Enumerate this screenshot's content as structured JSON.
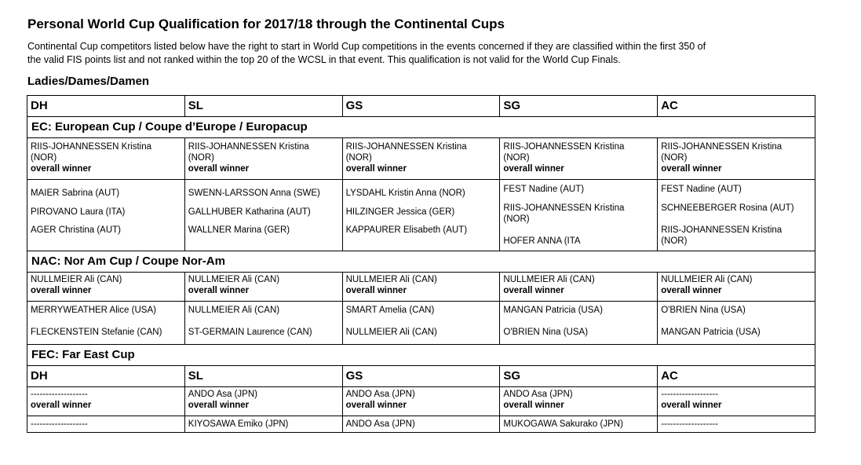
{
  "title": "Personal World Cup Qualification for 2017/18 through the Continental Cups",
  "intro": {
    "line1": "Continental Cup competitors listed below have the right to start in World Cup competitions in the events concerned if they are classified within the first 350 of",
    "line2": "the valid FIS points list and not ranked within the top 20 of the WCSL in that event. This qualification is not valid for the World Cup Finals."
  },
  "subhead": "Ladies/Dames/Damen",
  "columns": [
    "DH",
    "SL",
    "GS",
    "SG",
    "AC"
  ],
  "ec": {
    "title": "EC: European Cup / Coupe d’Europe / Europacup",
    "winner_name": "RIIS-JOHANNESSEN Kristina",
    "winner_nation": "(NOR)",
    "overall_label": "overall winner",
    "lists": [
      [
        "MAIER Sabrina (AUT)",
        "PIROVANO Laura (ITA)",
        "AGER Christina (AUT)"
      ],
      [
        "SWENN-LARSSON Anna (SWE)",
        "GALLHUBER Katharina (AUT)",
        "WALLNER Marina (GER)"
      ],
      [
        "LYSDAHL Kristin Anna (NOR)",
        "HILZINGER Jessica (GER)",
        "KAPPAURER Elisabeth (AUT)"
      ],
      [
        "FEST Nadine (AUT)",
        "RIIS-JOHANNESSEN Kristina",
        "(NOR)",
        "HOFER ANNA (ITA"
      ],
      [
        "FEST Nadine (AUT)",
        "SCHNEEBERGER Rosina (AUT)",
        "RIIS-JOHANNESSEN Kristina",
        "(NOR)"
      ]
    ]
  },
  "nac": {
    "title": "NAC: Nor Am Cup / Coupe Nor-Am",
    "winner": "NULLMEIER Ali (CAN)",
    "overall_label": "overall winner",
    "lists": [
      [
        "MERRYWEATHER Alice (USA)",
        "FLECKENSTEIN Stefanie (CAN)"
      ],
      [
        "NULLMEIER Ali (CAN)",
        "ST-GERMAIN Laurence (CAN)"
      ],
      [
        "SMART Amelia (CAN)",
        "NULLMEIER Ali (CAN)"
      ],
      [
        "MANGAN Patricia (USA)",
        "O'BRIEN Nina (USA)"
      ],
      [
        "O'BRIEN Nina (USA)",
        "MANGAN Patricia (USA)"
      ]
    ]
  },
  "fec": {
    "title": "FEC: Far East Cup",
    "columns": [
      "DH",
      "SL",
      "GS",
      "SG",
      "AC"
    ],
    "winners": [
      "-------------------",
      "ANDO Asa (JPN)",
      "ANDO Asa (JPN)",
      "ANDO Asa (JPN)",
      "-------------------"
    ],
    "overall_label": "overall winner",
    "second": [
      "-------------------",
      "KIYOSAWA Emiko (JPN)",
      "ANDO Asa (JPN)",
      "MUKOGAWA Sakurako (JPN)",
      "-------------------"
    ]
  }
}
